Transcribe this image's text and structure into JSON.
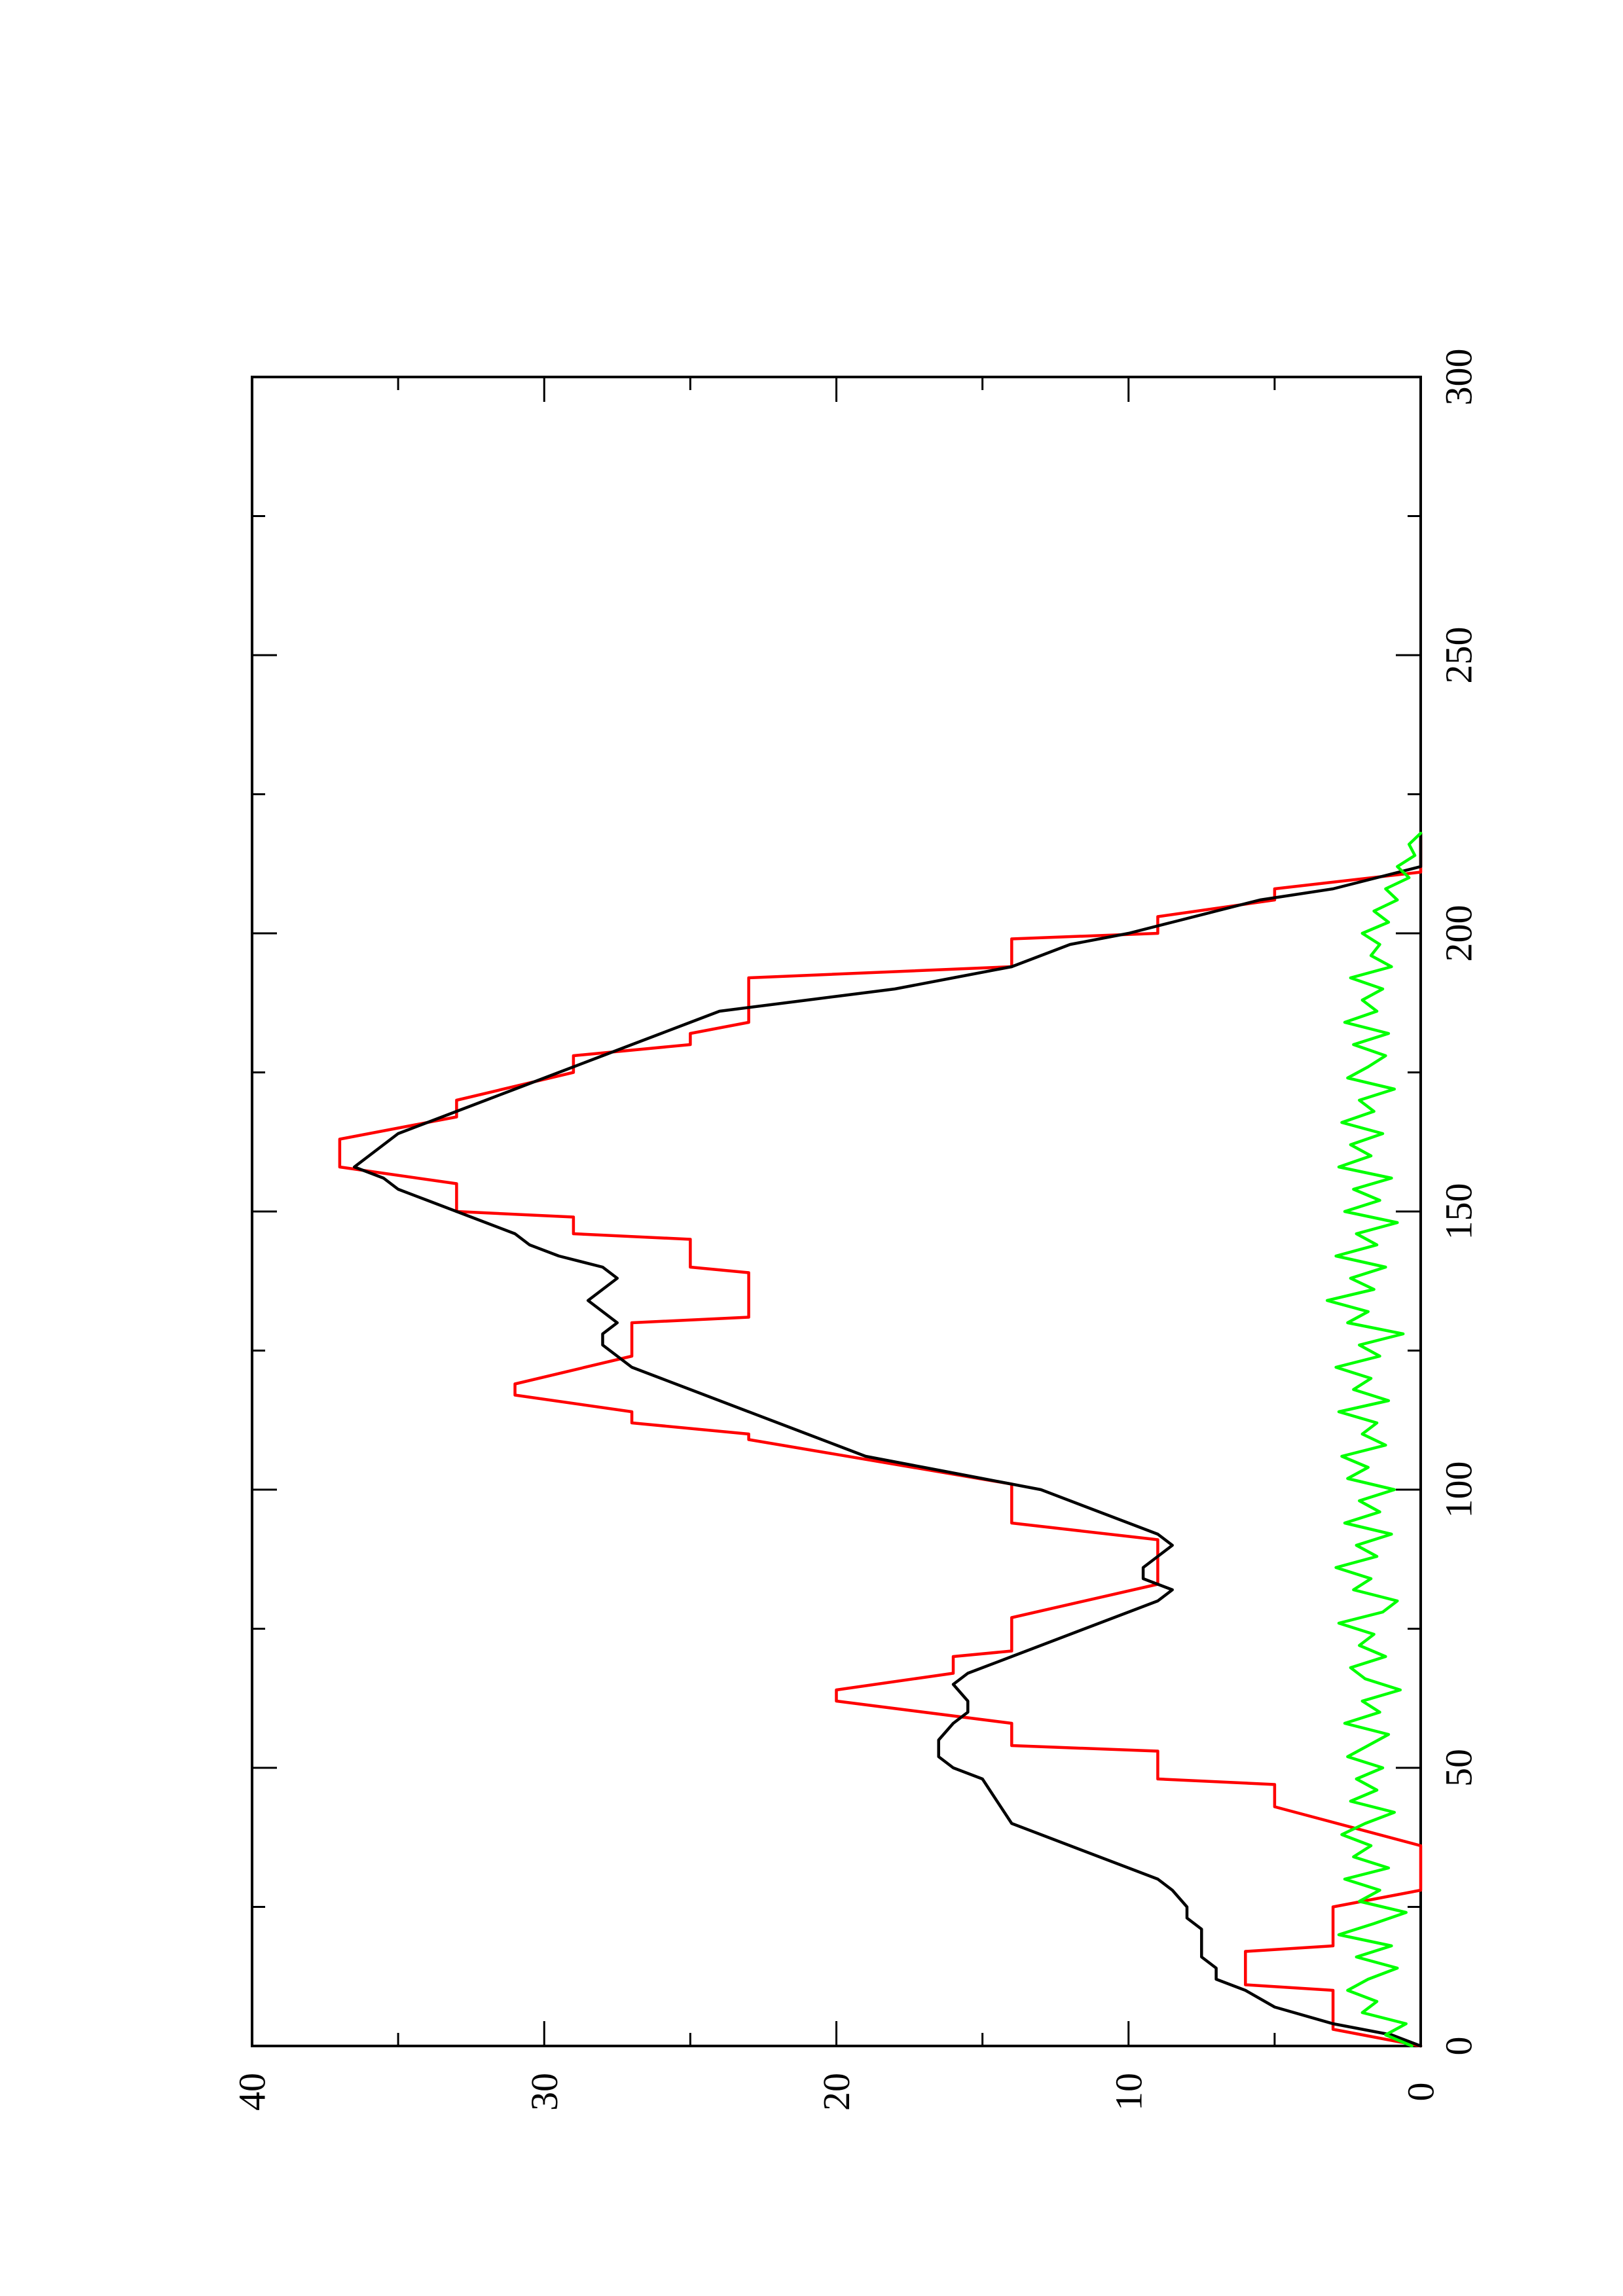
{
  "chart_data": {
    "type": "line",
    "orientation": "rotated-90-ccw",
    "title": "",
    "xlabel": "",
    "ylabel": "",
    "xlim": [
      0,
      300
    ],
    "ylim": [
      0,
      40
    ],
    "x_ticks": [
      0,
      50,
      100,
      150,
      200,
      250,
      300
    ],
    "x_tick_labels": [
      "0",
      "50",
      "100",
      "150",
      "200",
      "250",
      "300"
    ],
    "y_ticks": [
      0,
      10,
      20,
      30,
      40
    ],
    "y_tick_labels": [
      "0",
      "10",
      "20",
      "30",
      "40"
    ],
    "grid": false,
    "series": [
      {
        "color": "#ff0000",
        "style": "step",
        "points": [
          [
            0,
            0
          ],
          [
            3,
            3
          ],
          [
            10,
            3
          ],
          [
            11,
            6
          ],
          [
            17,
            6
          ],
          [
            18,
            3
          ],
          [
            25,
            3
          ],
          [
            28,
            0
          ],
          [
            36,
            0
          ],
          [
            43,
            5
          ],
          [
            47,
            5
          ],
          [
            48,
            9
          ],
          [
            53,
            9
          ],
          [
            54,
            14
          ],
          [
            58,
            14
          ],
          [
            62,
            20
          ],
          [
            64,
            20
          ],
          [
            67,
            16
          ],
          [
            70,
            16
          ],
          [
            71,
            14
          ],
          [
            77,
            14
          ],
          [
            83,
            9
          ],
          [
            91,
            9
          ],
          [
            94,
            14
          ],
          [
            101,
            14
          ],
          [
            109,
            23
          ],
          [
            110,
            23
          ],
          [
            112,
            27
          ],
          [
            114,
            27
          ],
          [
            117,
            31
          ],
          [
            119,
            31
          ],
          [
            124,
            27
          ],
          [
            130,
            27
          ],
          [
            131,
            23
          ],
          [
            139,
            23
          ],
          [
            140,
            25
          ],
          [
            145,
            25
          ],
          [
            146,
            29
          ],
          [
            149,
            29
          ],
          [
            150,
            33
          ],
          [
            155,
            33
          ],
          [
            158,
            37
          ],
          [
            163,
            37
          ],
          [
            167,
            33
          ],
          [
            170,
            33
          ],
          [
            175,
            29
          ],
          [
            178,
            29
          ],
          [
            180,
            25
          ],
          [
            182,
            25
          ],
          [
            184,
            23
          ],
          [
            192,
            23
          ],
          [
            194,
            14
          ],
          [
            199,
            14
          ],
          [
            200,
            9
          ],
          [
            203,
            9
          ],
          [
            206,
            5
          ],
          [
            208,
            5
          ],
          [
            211,
            0
          ],
          [
            218,
            0
          ]
        ]
      },
      {
        "color": "#000000",
        "style": "line",
        "points": [
          [
            0,
            0
          ],
          [
            2,
            1
          ],
          [
            4,
            3
          ],
          [
            7,
            5
          ],
          [
            10,
            6
          ],
          [
            12,
            7
          ],
          [
            14,
            7
          ],
          [
            16,
            7.5
          ],
          [
            18,
            7.5
          ],
          [
            21,
            7.5
          ],
          [
            23,
            8
          ],
          [
            25,
            8
          ],
          [
            28,
            8.5
          ],
          [
            30,
            9
          ],
          [
            32,
            10
          ],
          [
            34,
            11
          ],
          [
            36,
            12
          ],
          [
            38,
            13
          ],
          [
            40,
            14
          ],
          [
            44,
            14.5
          ],
          [
            48,
            15
          ],
          [
            50,
            16
          ],
          [
            52,
            16.5
          ],
          [
            55,
            16.5
          ],
          [
            58,
            16
          ],
          [
            60,
            15.5
          ],
          [
            62,
            15.5
          ],
          [
            65,
            16
          ],
          [
            67,
            15.5
          ],
          [
            70,
            14
          ],
          [
            73,
            12.5
          ],
          [
            76,
            11
          ],
          [
            78,
            10
          ],
          [
            80,
            9
          ],
          [
            82,
            8.5
          ],
          [
            84,
            9.5
          ],
          [
            86,
            9.5
          ],
          [
            88,
            9
          ],
          [
            90,
            8.5
          ],
          [
            92,
            9
          ],
          [
            94,
            10
          ],
          [
            96,
            11
          ],
          [
            98,
            12
          ],
          [
            100,
            13
          ],
          [
            102,
            15
          ],
          [
            104,
            17
          ],
          [
            106,
            19
          ],
          [
            108,
            20
          ],
          [
            110,
            21
          ],
          [
            112,
            22
          ],
          [
            114,
            23
          ],
          [
            116,
            24
          ],
          [
            118,
            25
          ],
          [
            120,
            26
          ],
          [
            122,
            27
          ],
          [
            124,
            27.5
          ],
          [
            126,
            28
          ],
          [
            128,
            28
          ],
          [
            130,
            27.5
          ],
          [
            132,
            28
          ],
          [
            134,
            28.5
          ],
          [
            136,
            28
          ],
          [
            138,
            27.5
          ],
          [
            140,
            28
          ],
          [
            142,
            29.5
          ],
          [
            144,
            30.5
          ],
          [
            146,
            31
          ],
          [
            148,
            32
          ],
          [
            150,
            33
          ],
          [
            152,
            34
          ],
          [
            154,
            35
          ],
          [
            156,
            35.5
          ],
          [
            158,
            36.5
          ],
          [
            160,
            36
          ],
          [
            162,
            35.5
          ],
          [
            164,
            35
          ],
          [
            166,
            34
          ],
          [
            168,
            33
          ],
          [
            170,
            32
          ],
          [
            172,
            31
          ],
          [
            174,
            30
          ],
          [
            176,
            29
          ],
          [
            178,
            28
          ],
          [
            180,
            27
          ],
          [
            182,
            26
          ],
          [
            184,
            25
          ],
          [
            186,
            24
          ],
          [
            188,
            21
          ],
          [
            190,
            18
          ],
          [
            192,
            16
          ],
          [
            194,
            14
          ],
          [
            196,
            13
          ],
          [
            198,
            12
          ],
          [
            200,
            10
          ],
          [
            202,
            8.5
          ],
          [
            204,
            7
          ],
          [
            206,
            5.5
          ],
          [
            208,
            3
          ],
          [
            210,
            1.5
          ],
          [
            212,
            0
          ],
          [
            218,
            0
          ]
        ]
      },
      {
        "color": "#00ff00",
        "style": "line",
        "points": [
          [
            0,
            0.3
          ],
          [
            2,
            1.2
          ],
          [
            4,
            0.5
          ],
          [
            6,
            2
          ],
          [
            8,
            1.5
          ],
          [
            10,
            2.5
          ],
          [
            12,
            1.8
          ],
          [
            14,
            0.8
          ],
          [
            16,
            2.2
          ],
          [
            18,
            1
          ],
          [
            20,
            2.8
          ],
          [
            22,
            1.6
          ],
          [
            24,
            0.5
          ],
          [
            26,
            2.1
          ],
          [
            28,
            1.4
          ],
          [
            30,
            2.6
          ],
          [
            32,
            1.1
          ],
          [
            34,
            2.3
          ],
          [
            36,
            1.7
          ],
          [
            38,
            2.7
          ],
          [
            40,
            1.9
          ],
          [
            42,
            0.9
          ],
          [
            44,
            2.4
          ],
          [
            46,
            1.5
          ],
          [
            48,
            2.2
          ],
          [
            50,
            1.3
          ],
          [
            52,
            2.5
          ],
          [
            54,
            1.8
          ],
          [
            56,
            1.1
          ],
          [
            58,
            2.6
          ],
          [
            60,
            1.4
          ],
          [
            62,
            2
          ],
          [
            64,
            0.7
          ],
          [
            66,
            1.9
          ],
          [
            68,
            2.4
          ],
          [
            70,
            1.2
          ],
          [
            72,
            2.1
          ],
          [
            74,
            1.6
          ],
          [
            76,
            2.8
          ],
          [
            78,
            1.3
          ],
          [
            80,
            0.8
          ],
          [
            82,
            2.3
          ],
          [
            84,
            1.7
          ],
          [
            86,
            2.9
          ],
          [
            88,
            1.5
          ],
          [
            90,
            2.2
          ],
          [
            92,
            1
          ],
          [
            94,
            2.6
          ],
          [
            96,
            1.4
          ],
          [
            98,
            2.1
          ],
          [
            100,
            0.9
          ],
          [
            102,
            2.5
          ],
          [
            104,
            1.8
          ],
          [
            106,
            2.7
          ],
          [
            108,
            1.2
          ],
          [
            110,
            2
          ],
          [
            112,
            1.5
          ],
          [
            114,
            2.8
          ],
          [
            116,
            1.1
          ],
          [
            118,
            2.3
          ],
          [
            120,
            1.7
          ],
          [
            122,
            2.9
          ],
          [
            124,
            1.4
          ],
          [
            126,
            2.1
          ],
          [
            128,
            0.6
          ],
          [
            130,
            2.5
          ],
          [
            132,
            1.8
          ],
          [
            134,
            3.2
          ],
          [
            136,
            1.6
          ],
          [
            138,
            2.4
          ],
          [
            140,
            1.2
          ],
          [
            142,
            2.9
          ],
          [
            144,
            1.5
          ],
          [
            146,
            2.2
          ],
          [
            148,
            0.8
          ],
          [
            150,
            2.6
          ],
          [
            152,
            1.4
          ],
          [
            154,
            2.3
          ],
          [
            156,
            1
          ],
          [
            158,
            2.8
          ],
          [
            160,
            1.7
          ],
          [
            162,
            2.4
          ],
          [
            164,
            1.3
          ],
          [
            166,
            2.7
          ],
          [
            168,
            1.6
          ],
          [
            170,
            2.1
          ],
          [
            172,
            0.9
          ],
          [
            174,
            2.5
          ],
          [
            176,
            1.8
          ],
          [
            178,
            1.2
          ],
          [
            180,
            2.3
          ],
          [
            182,
            1.1
          ],
          [
            184,
            2.6
          ],
          [
            186,
            1.5
          ],
          [
            188,
            2
          ],
          [
            190,
            1.3
          ],
          [
            192,
            2.4
          ],
          [
            194,
            1
          ],
          [
            196,
            1.7
          ],
          [
            198,
            1.4
          ],
          [
            200,
            2
          ],
          [
            202,
            1.1
          ],
          [
            204,
            1.6
          ],
          [
            206,
            0.8
          ],
          [
            208,
            1.2
          ],
          [
            210,
            0.4
          ],
          [
            212,
            0.8
          ],
          [
            214,
            0.2
          ],
          [
            216,
            0.4
          ],
          [
            218,
            0
          ]
        ]
      }
    ]
  }
}
